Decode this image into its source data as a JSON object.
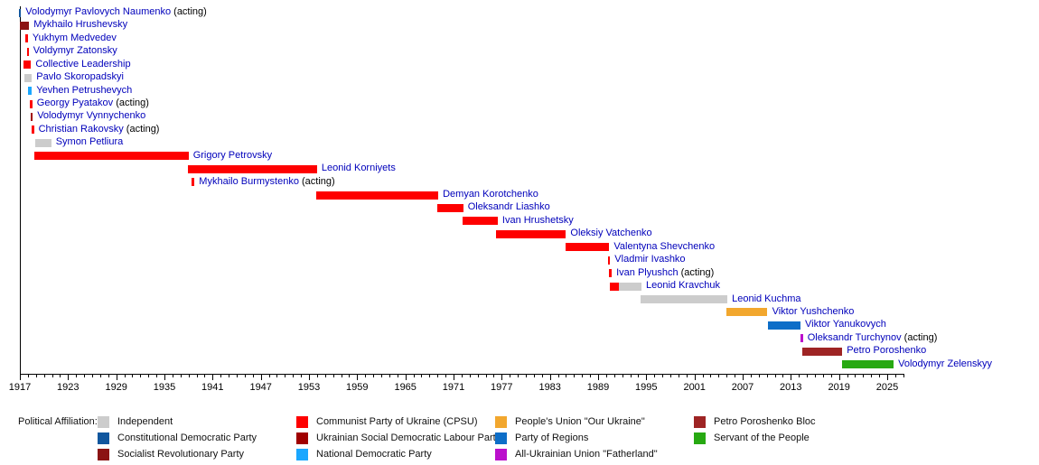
{
  "chart_data": {
    "type": "timeline",
    "title": "",
    "axis": {
      "start_year": 1917,
      "end_year": 2027,
      "tick_step_minor": 1,
      "tick_step_major": 6,
      "tick_years": [
        1917,
        1923,
        1929,
        1935,
        1941,
        1947,
        1953,
        1959,
        1965,
        1971,
        1977,
        1983,
        1989,
        1995,
        2001,
        2007,
        2013,
        2019,
        2025
      ]
    },
    "parties": {
      "independent": {
        "label": "Independent",
        "color": "#cccccc"
      },
      "constitutional_democratic": {
        "label": "Constitutional Democratic Party",
        "color": "#10569e"
      },
      "socialist_revolutionary": {
        "label": "Socialist Revolutionary Party",
        "color": "#8b1414"
      },
      "communist": {
        "label": "Communist Party of Ukraine (CPSU)",
        "color": "#fe0000"
      },
      "usdlp": {
        "label": "Ukrainian Social Democratic Labour Party",
        "color": "#a00000"
      },
      "national_democratic": {
        "label": "National Democratic Party",
        "color": "#1aa7ff"
      },
      "our_ukraine": {
        "label": "People's Union \"Our Ukraine\"",
        "color": "#f2a72e"
      },
      "party_of_regions": {
        "label": "Party of Regions",
        "color": "#0d6ec8"
      },
      "fatherland": {
        "label": "All-Ukrainian Union \"Fatherland\"",
        "color": "#bb10cc"
      },
      "poroshenko_bloc": {
        "label": "Petro Poroshenko Bloc",
        "color": "#9e2424"
      },
      "servant_of_the_people": {
        "label": "Servant of the People",
        "color": "#27a912"
      }
    },
    "rows": [
      {
        "name": "Volodymyr Pavlovych Naumenko",
        "suffix": "(acting)",
        "segments": [
          {
            "start": 1916.85,
            "end": 1917.15,
            "party": "constitutional_democratic"
          }
        ]
      },
      {
        "name": "Mykhailo Hrushevsky",
        "suffix": "",
        "segments": [
          {
            "start": 1917.0,
            "end": 1918.15,
            "party": "socialist_revolutionary"
          }
        ]
      },
      {
        "name": "Yukhym Medvedev",
        "suffix": "",
        "segments": [
          {
            "start": 1917.7,
            "end": 1918.0,
            "party": "communist"
          }
        ]
      },
      {
        "name": "Voldymyr Zatonsky",
        "suffix": "",
        "segments": [
          {
            "start": 1917.85,
            "end": 1918.1,
            "party": "communist"
          }
        ]
      },
      {
        "name": "Collective Leadership",
        "suffix": "",
        "segments": [
          {
            "start": 1917.5,
            "end": 1918.4,
            "party": "communist"
          }
        ]
      },
      {
        "name": "Pavlo Skoropadskyi",
        "suffix": "",
        "segments": [
          {
            "start": 1917.6,
            "end": 1918.5,
            "party": "independent"
          }
        ]
      },
      {
        "name": "Yevhen Petrushevych",
        "suffix": "",
        "segments": [
          {
            "start": 1918.0,
            "end": 1918.5,
            "party": "national_democratic"
          }
        ]
      },
      {
        "name": "Georgy Pyatakov",
        "suffix": "(acting)",
        "segments": [
          {
            "start": 1918.25,
            "end": 1918.55,
            "party": "communist"
          }
        ]
      },
      {
        "name": "Volodymyr Vynnychenko",
        "suffix": "",
        "segments": [
          {
            "start": 1918.35,
            "end": 1918.6,
            "party": "usdlp"
          }
        ]
      },
      {
        "name": "Christian Rakovsky",
        "suffix": "(acting)",
        "segments": [
          {
            "start": 1918.45,
            "end": 1918.75,
            "party": "communist"
          }
        ]
      },
      {
        "name": "Symon Petliura",
        "suffix": "",
        "segments": [
          {
            "start": 1918.9,
            "end": 1920.9,
            "party": "independent"
          }
        ]
      },
      {
        "name": "Grigory Petrovsky",
        "suffix": "",
        "segments": [
          {
            "start": 1918.8,
            "end": 1938.0,
            "party": "communist"
          }
        ]
      },
      {
        "name": "Leonid Korniyets",
        "suffix": "",
        "segments": [
          {
            "start": 1937.9,
            "end": 1954.0,
            "party": "communist"
          }
        ]
      },
      {
        "name": "Mykhailo Burmystenko",
        "suffix": "(acting)",
        "segments": [
          {
            "start": 1938.4,
            "end": 1938.75,
            "party": "communist"
          }
        ]
      },
      {
        "name": "Demyan Korotchenko",
        "suffix": "",
        "segments": [
          {
            "start": 1953.9,
            "end": 1969.1,
            "party": "communist"
          }
        ]
      },
      {
        "name": "Oleksandr Liashko",
        "suffix": "",
        "segments": [
          {
            "start": 1969.0,
            "end": 1972.2,
            "party": "communist"
          }
        ]
      },
      {
        "name": "Ivan Hrushetsky",
        "suffix": "",
        "segments": [
          {
            "start": 1972.1,
            "end": 1976.5,
            "party": "communist"
          }
        ]
      },
      {
        "name": "Oleksiy Vatchenko",
        "suffix": "",
        "segments": [
          {
            "start": 1976.3,
            "end": 1985.0,
            "party": "communist"
          }
        ]
      },
      {
        "name": "Valentyna Shevchenko",
        "suffix": "",
        "segments": [
          {
            "start": 1984.9,
            "end": 1990.4,
            "party": "communist"
          }
        ]
      },
      {
        "name": "Vladmir Ivashko",
        "suffix": "",
        "segments": [
          {
            "start": 1990.2,
            "end": 1990.5,
            "party": "communist"
          }
        ]
      },
      {
        "name": "Ivan Plyushch",
        "suffix": "(acting)",
        "segments": [
          {
            "start": 1990.4,
            "end": 1990.7,
            "party": "communist"
          }
        ]
      },
      {
        "name": "Leonid Kravchuk",
        "suffix": "",
        "segments": [
          {
            "start": 1990.5,
            "end": 1991.6,
            "party": "communist"
          },
          {
            "start": 1991.6,
            "end": 1994.4,
            "party": "independent"
          }
        ]
      },
      {
        "name": "Leonid Kuchma",
        "suffix": "",
        "segments": [
          {
            "start": 1994.3,
            "end": 2005.1,
            "party": "independent"
          }
        ]
      },
      {
        "name": "Viktor Yushchenko",
        "suffix": "",
        "segments": [
          {
            "start": 2005.0,
            "end": 2010.1,
            "party": "our_ukraine"
          }
        ]
      },
      {
        "name": "Viktor Yanukovych",
        "suffix": "",
        "segments": [
          {
            "start": 2010.1,
            "end": 2014.2,
            "party": "party_of_regions"
          }
        ]
      },
      {
        "name": "Oleksandr Turchynov",
        "suffix": "(acting)",
        "segments": [
          {
            "start": 2014.15,
            "end": 2014.5,
            "party": "fatherland"
          }
        ]
      },
      {
        "name": "Petro Poroshenko",
        "suffix": "",
        "segments": [
          {
            "start": 2014.4,
            "end": 2019.4,
            "party": "poroshenko_bloc"
          }
        ]
      },
      {
        "name": "Volodymyr Zelenskyy",
        "suffix": "",
        "segments": [
          {
            "start": 2019.4,
            "end": 2025.8,
            "party": "servant_of_the_people"
          }
        ]
      }
    ]
  },
  "legend": {
    "title": "Political Affiliation:",
    "columns": [
      [
        "independent",
        "constitutional_democratic",
        "socialist_revolutionary"
      ],
      [
        "communist",
        "usdlp",
        "national_democratic"
      ],
      [
        "our_ukraine",
        "party_of_regions",
        "fatherland"
      ],
      [
        "poroshenko_bloc",
        "servant_of_the_people"
      ]
    ]
  }
}
